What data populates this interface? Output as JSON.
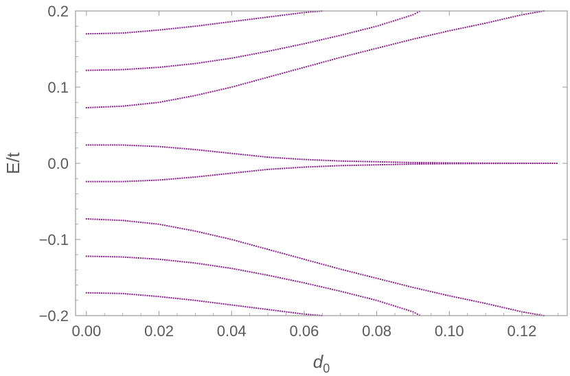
{
  "chart_data": {
    "type": "scatter",
    "title": "",
    "xlabel": "d",
    "xlabel_subscript": "0",
    "ylabel": "E/t",
    "xlim": [
      -0.003,
      0.1325
    ],
    "ylim": [
      -0.2,
      0.2
    ],
    "x_ticks": [
      0.0,
      0.02,
      0.04,
      0.06,
      0.08,
      0.1,
      0.12
    ],
    "x_tick_labels": [
      "0.00",
      "0.02",
      "0.04",
      "0.06",
      "0.08",
      "0.10",
      "0.12"
    ],
    "y_ticks": [
      -0.2,
      -0.1,
      0.0,
      0.1,
      0.2
    ],
    "y_tick_labels": [
      "−0.2",
      "−0.1",
      "0.0",
      "0.1",
      "0.2"
    ],
    "grid": false,
    "legend": "none",
    "marker_color": "#8b1a8b",
    "frame_color": "#9a9a9a",
    "series": [
      {
        "x": [
          0,
          0.01,
          0.02,
          0.03,
          0.04,
          0.05,
          0.06,
          0.065
        ],
        "y": [
          0.17,
          0.171,
          0.175,
          0.18,
          0.186,
          0.192,
          0.198,
          0.2
        ]
      },
      {
        "x": [
          0,
          0.01,
          0.02,
          0.03,
          0.04,
          0.05,
          0.06,
          0.07,
          0.08,
          0.09,
          0.092
        ],
        "y": [
          0.122,
          0.123,
          0.126,
          0.131,
          0.138,
          0.147,
          0.157,
          0.168,
          0.18,
          0.195,
          0.2
        ]
      },
      {
        "x": [
          0,
          0.01,
          0.02,
          0.03,
          0.04,
          0.05,
          0.06,
          0.07,
          0.08,
          0.09,
          0.1,
          0.11,
          0.12,
          0.126
        ],
        "y": [
          0.073,
          0.075,
          0.08,
          0.089,
          0.1,
          0.113,
          0.126,
          0.139,
          0.151,
          0.163,
          0.174,
          0.184,
          0.195,
          0.2
        ]
      },
      {
        "x": [
          0,
          0.01,
          0.02,
          0.03,
          0.04,
          0.05,
          0.06,
          0.07,
          0.08,
          0.09,
          0.1,
          0.11,
          0.12,
          0.13
        ],
        "y": [
          0.024,
          0.024,
          0.022,
          0.018,
          0.013,
          0.008,
          0.005,
          0.003,
          0.002,
          0.001,
          0.0005,
          0.0002,
          0.0001,
          0.0
        ]
      },
      {
        "x": [
          0,
          0.01,
          0.02,
          0.03,
          0.04,
          0.05,
          0.06,
          0.07,
          0.08,
          0.09,
          0.1,
          0.11,
          0.12,
          0.13
        ],
        "y": [
          -0.024,
          -0.024,
          -0.022,
          -0.018,
          -0.013,
          -0.008,
          -0.005,
          -0.003,
          -0.002,
          -0.001,
          -0.0005,
          -0.0002,
          -0.0001,
          0.0
        ]
      },
      {
        "x": [
          0,
          0.01,
          0.02,
          0.03,
          0.04,
          0.05,
          0.06,
          0.07,
          0.08,
          0.09,
          0.1,
          0.11,
          0.12,
          0.126
        ],
        "y": [
          -0.073,
          -0.075,
          -0.08,
          -0.089,
          -0.1,
          -0.113,
          -0.126,
          -0.139,
          -0.151,
          -0.163,
          -0.174,
          -0.184,
          -0.195,
          -0.2
        ]
      },
      {
        "x": [
          0,
          0.01,
          0.02,
          0.03,
          0.04,
          0.05,
          0.06,
          0.07,
          0.08,
          0.09,
          0.092
        ],
        "y": [
          -0.122,
          -0.123,
          -0.126,
          -0.131,
          -0.138,
          -0.147,
          -0.157,
          -0.168,
          -0.18,
          -0.195,
          -0.2
        ]
      },
      {
        "x": [
          0,
          0.01,
          0.02,
          0.03,
          0.04,
          0.05,
          0.06,
          0.065
        ],
        "y": [
          -0.17,
          -0.171,
          -0.175,
          -0.18,
          -0.186,
          -0.192,
          -0.198,
          -0.2
        ]
      }
    ]
  }
}
